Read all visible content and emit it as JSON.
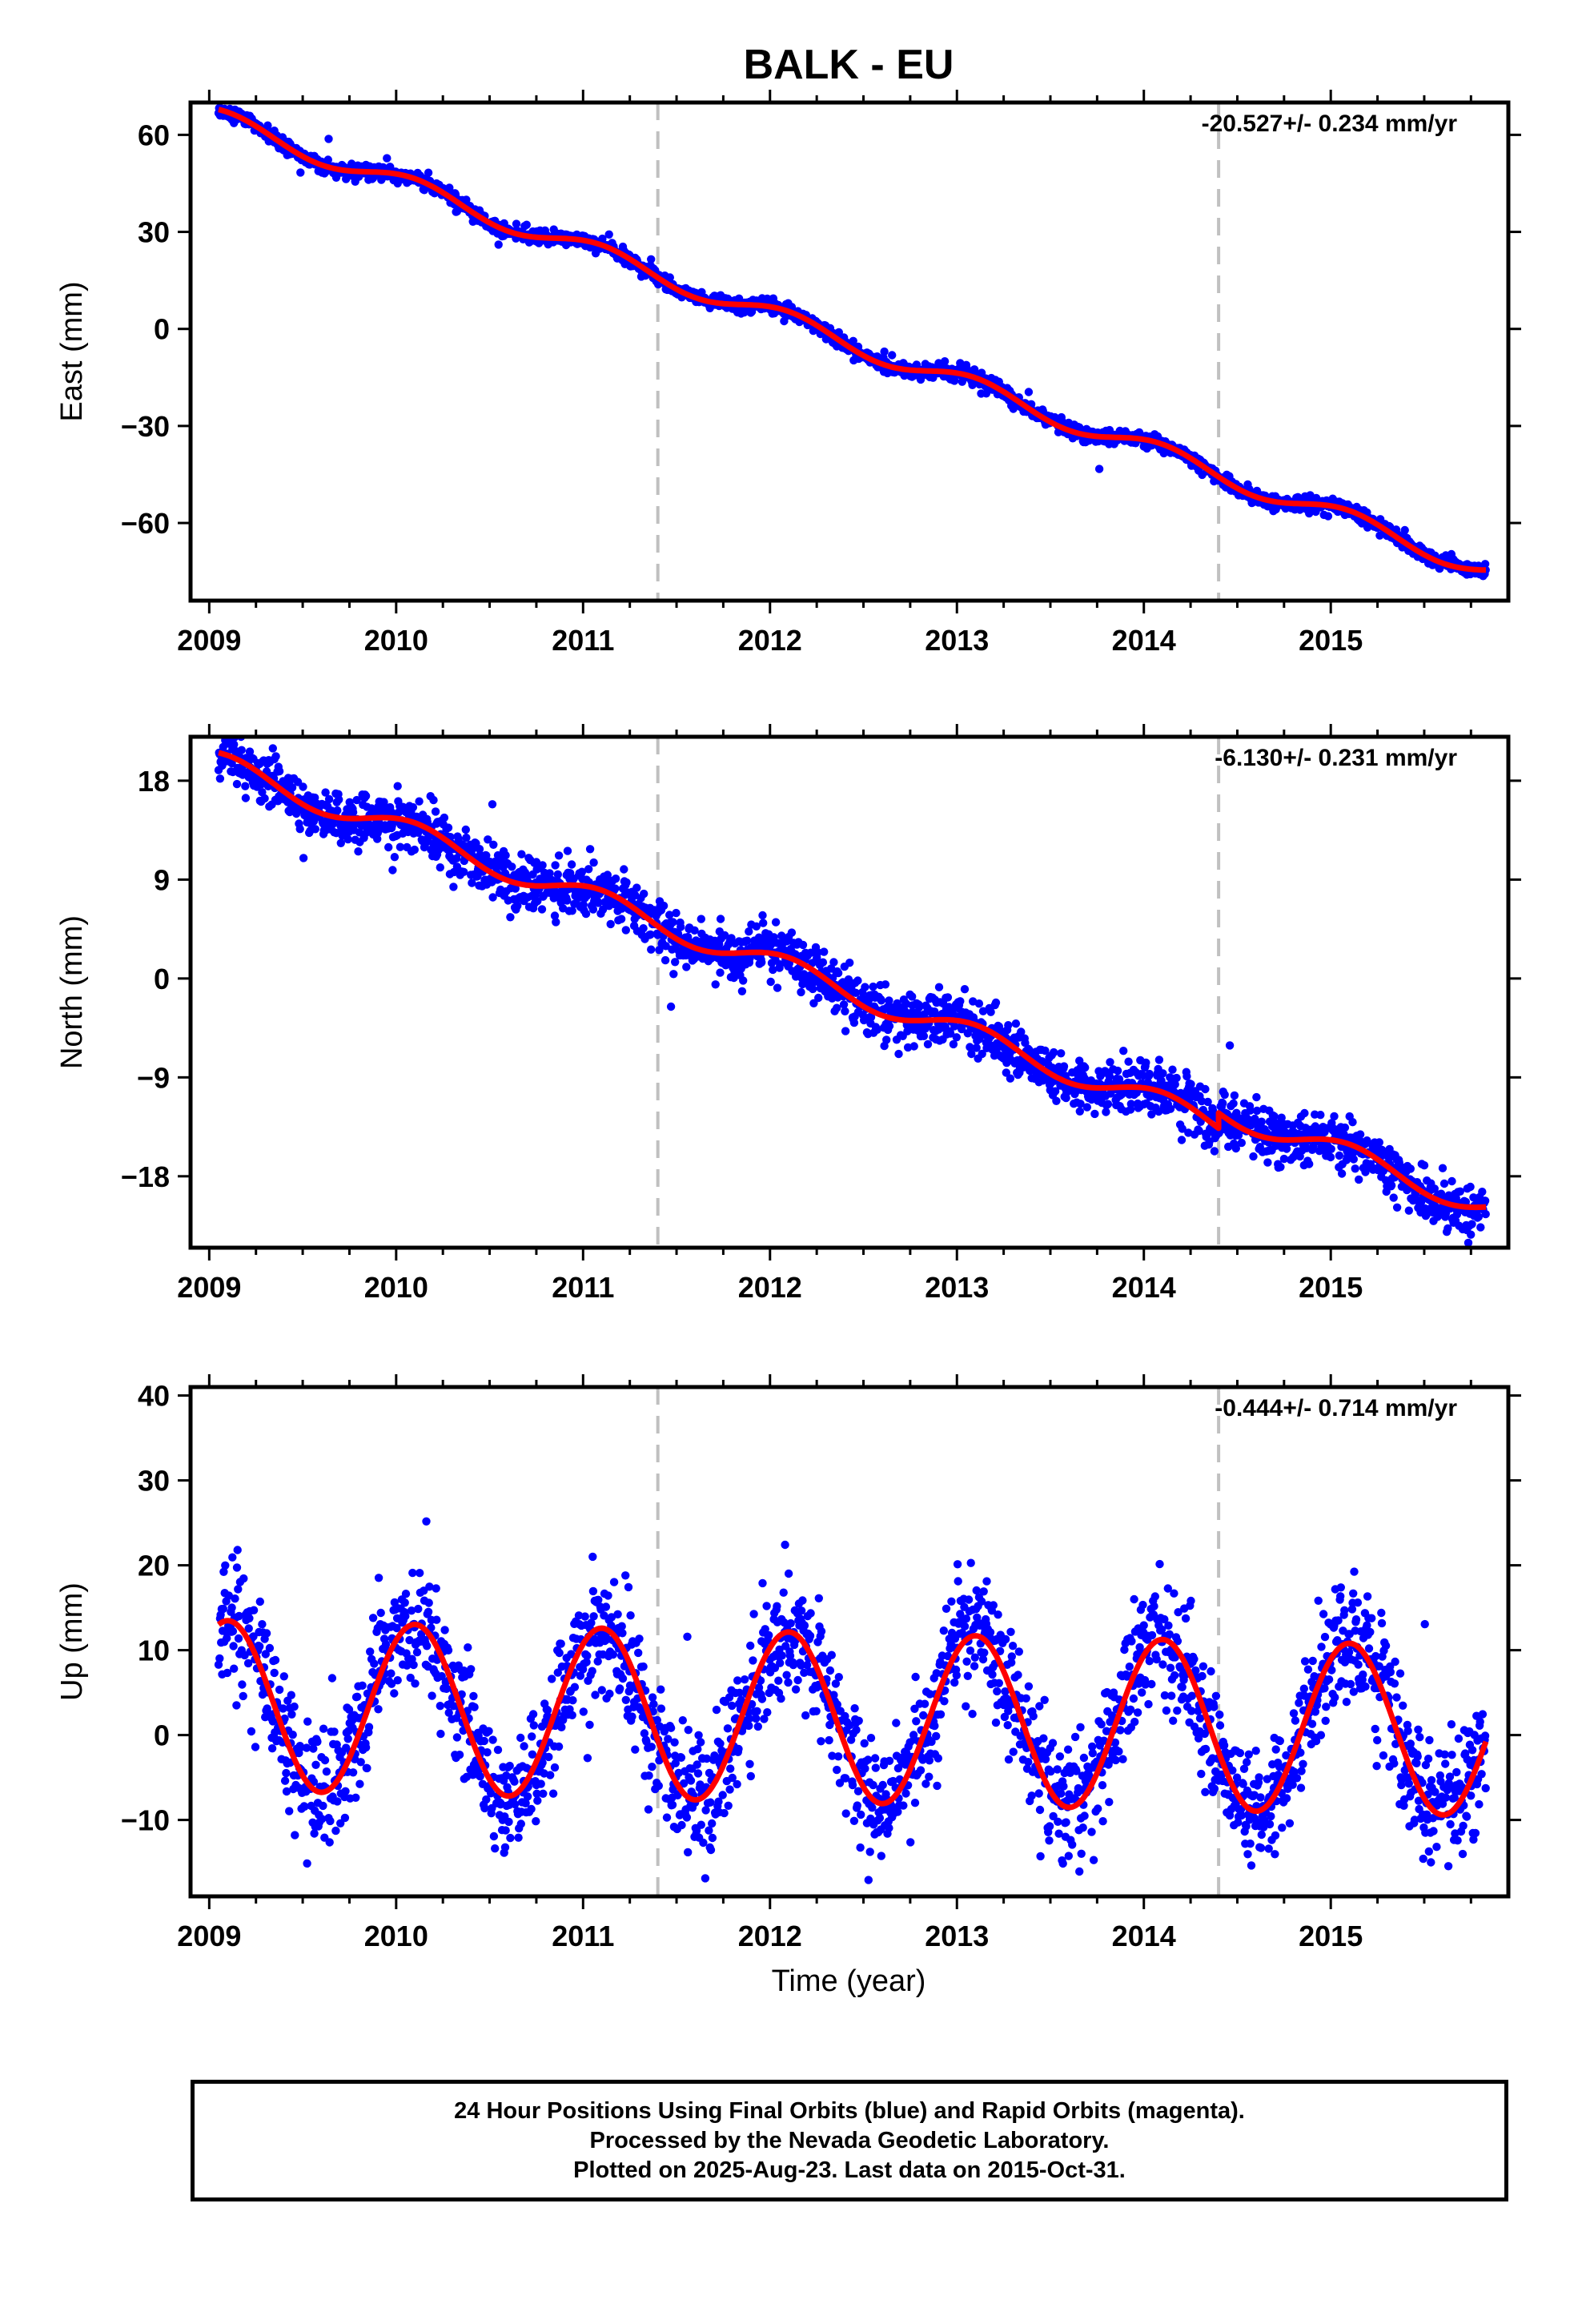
{
  "page": {
    "title": "BALK - EU",
    "xlabel": "Time (year)"
  },
  "footer": {
    "line1": "24 Hour Positions Using Final Orbits (blue) and Rapid Orbits (magenta).",
    "line2": "Processed by the Nevada Geodetic Laboratory.",
    "line3": "Plotted on 2025-Aug-23. Last data on 2015-Oct-31."
  },
  "colors": {
    "points": "#0000ff",
    "model": "#ff0000",
    "breaks": "#c0c0c0",
    "frame": "#000000"
  },
  "chart_data": [
    {
      "type": "scatter",
      "name": "east",
      "ylabel": "East (mm)",
      "rate_label": "-20.527+/- 0.234 mm/yr",
      "xlim": [
        2008.9,
        2015.95
      ],
      "ylim": [
        -84,
        70
      ],
      "yticks": [
        60,
        30,
        0,
        -30,
        -60
      ],
      "xticks": [
        2009,
        2010,
        2011,
        2012,
        2013,
        2014,
        2015
      ],
      "breaks": [
        2011.4,
        2014.4
      ],
      "start": 2009.05,
      "end": 2015.83,
      "trend_start": 65,
      "rate_mm_per_yr": -20.527,
      "annual_amp": 3.0,
      "noise_sd": 1.1,
      "model_segments": [
        {
          "x0": 2009.05,
          "x1": 2014.4,
          "offset": 0
        },
        {
          "x0": 2014.4,
          "x1": 2015.83,
          "offset": 0
        }
      ]
    },
    {
      "type": "scatter",
      "name": "north",
      "ylabel": "North (mm)",
      "rate_label": "-6.130+/- 0.231 mm/yr",
      "xlim": [
        2008.9,
        2015.95
      ],
      "ylim": [
        -24.5,
        22
      ],
      "yticks": [
        18,
        9,
        0,
        -9,
        -18
      ],
      "xticks": [
        2009,
        2010,
        2011,
        2012,
        2013,
        2014,
        2015
      ],
      "breaks": [
        2011.4,
        2014.4
      ],
      "start": 2009.05,
      "end": 2015.83,
      "trend_start": 19.5,
      "rate_mm_per_yr": -6.13,
      "annual_amp": 1.1,
      "noise_sd": 1.2,
      "model_segments": [
        {
          "x0": 2009.05,
          "x1": 2014.4,
          "offset": 0
        },
        {
          "x0": 2014.4,
          "x1": 2015.83,
          "offset": 1.4
        }
      ]
    },
    {
      "type": "scatter",
      "name": "up",
      "ylabel": "Up (mm)",
      "rate_label": "-0.444+/- 0.714 mm/yr",
      "xlim": [
        2008.9,
        2015.95
      ],
      "ylim": [
        -19,
        41
      ],
      "yticks": [
        40,
        30,
        20,
        10,
        0,
        -10
      ],
      "xticks": [
        2009,
        2010,
        2011,
        2012,
        2013,
        2014,
        2015
      ],
      "breaks": [
        2011.4,
        2014.4
      ],
      "start": 2009.05,
      "end": 2015.83,
      "trend_start": 3.5,
      "rate_mm_per_yr": -0.444,
      "annual_amp": 10.0,
      "noise_sd": 3.6,
      "model_segments": [
        {
          "x0": 2009.05,
          "x1": 2015.83,
          "offset": 0
        }
      ]
    }
  ]
}
